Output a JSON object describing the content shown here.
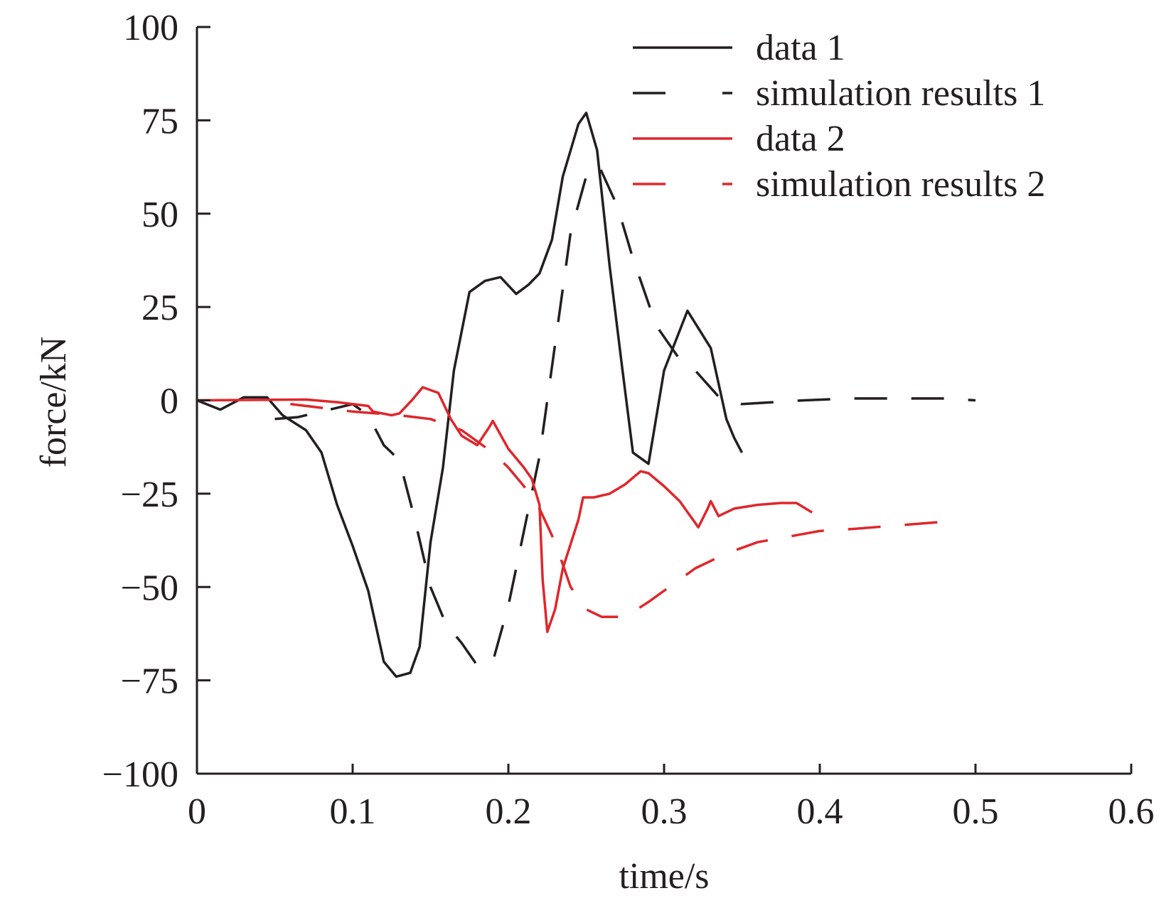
{
  "chart_data": {
    "type": "line",
    "xlabel": "time/s",
    "ylabel": "force/kN",
    "xlim": [
      0,
      0.6
    ],
    "ylim": [
      -100,
      100
    ],
    "x_ticks": [
      "0",
      "0.1",
      "0.2",
      "0.3",
      "0.4",
      "0.5",
      "0.6"
    ],
    "y_ticks": [
      "100",
      "75",
      "50",
      "25",
      "0",
      "−25",
      "−50",
      "−75",
      "−100"
    ],
    "x_tick_values": [
      0,
      0.1,
      0.2,
      0.3,
      0.4,
      0.5,
      0.6
    ],
    "y_tick_values": [
      100,
      75,
      50,
      25,
      0,
      -25,
      -50,
      -75,
      -100
    ],
    "legend_position": "top-right",
    "series": [
      {
        "name": "data 1",
        "color": "#231f20",
        "style": "solid",
        "points": [
          [
            0,
            0
          ],
          [
            0.015,
            -2.5
          ],
          [
            0.03,
            0.8
          ],
          [
            0.045,
            0.8
          ],
          [
            0.055,
            -4
          ],
          [
            0.07,
            -8
          ],
          [
            0.08,
            -14
          ],
          [
            0.09,
            -28
          ],
          [
            0.1,
            -39
          ],
          [
            0.11,
            -51
          ],
          [
            0.12,
            -70
          ],
          [
            0.128,
            -74
          ],
          [
            0.137,
            -73
          ],
          [
            0.143,
            -66
          ],
          [
            0.15,
            -38
          ],
          [
            0.158,
            -18
          ],
          [
            0.165,
            8
          ],
          [
            0.175,
            29
          ],
          [
            0.185,
            32
          ],
          [
            0.195,
            33
          ],
          [
            0.205,
            28.5
          ],
          [
            0.213,
            31
          ],
          [
            0.22,
            34
          ],
          [
            0.228,
            43
          ],
          [
            0.235,
            60
          ],
          [
            0.24,
            67
          ],
          [
            0.245,
            74
          ],
          [
            0.25,
            77
          ],
          [
            0.257,
            67
          ],
          [
            0.265,
            36
          ],
          [
            0.273,
            9
          ],
          [
            0.28,
            -14
          ],
          [
            0.29,
            -17
          ],
          [
            0.3,
            8
          ],
          [
            0.315,
            24
          ],
          [
            0.33,
            14
          ],
          [
            0.34,
            -5
          ],
          [
            0.345,
            -10
          ],
          [
            0.35,
            -14
          ]
        ]
      },
      {
        "name": "simulation results 1",
        "color": "#231f20",
        "style": "dashed",
        "points": [
          [
            0.05,
            -5
          ],
          [
            0.065,
            -4.5
          ],
          [
            0.08,
            -3
          ],
          [
            0.1,
            -1
          ],
          [
            0.11,
            -4
          ],
          [
            0.12,
            -12
          ],
          [
            0.13,
            -16
          ],
          [
            0.14,
            -32
          ],
          [
            0.15,
            -50
          ],
          [
            0.16,
            -60
          ],
          [
            0.17,
            -65
          ],
          [
            0.18,
            -71
          ],
          [
            0.19,
            -70
          ],
          [
            0.2,
            -55
          ],
          [
            0.21,
            -35
          ],
          [
            0.22,
            -15
          ],
          [
            0.23,
            15
          ],
          [
            0.24,
            45
          ],
          [
            0.25,
            60
          ],
          [
            0.258,
            63
          ],
          [
            0.27,
            52
          ],
          [
            0.28,
            38
          ],
          [
            0.295,
            20
          ],
          [
            0.31,
            11
          ],
          [
            0.32,
            8
          ],
          [
            0.335,
            1
          ],
          [
            0.35,
            -1
          ],
          [
            0.37,
            -0.5
          ],
          [
            0.39,
            0
          ],
          [
            0.42,
            0.5
          ],
          [
            0.45,
            0.5
          ],
          [
            0.48,
            0.5
          ],
          [
            0.5,
            0
          ]
        ]
      },
      {
        "name": "data 2",
        "color": "#e0262b",
        "style": "solid",
        "points": [
          [
            0,
            0
          ],
          [
            0.07,
            0.2
          ],
          [
            0.09,
            -0.5
          ],
          [
            0.11,
            -1.5
          ],
          [
            0.113,
            -3
          ],
          [
            0.125,
            -4
          ],
          [
            0.13,
            -3.5
          ],
          [
            0.138,
            0
          ],
          [
            0.145,
            3.5
          ],
          [
            0.155,
            2
          ],
          [
            0.163,
            -5
          ],
          [
            0.17,
            -9.5
          ],
          [
            0.18,
            -12
          ],
          [
            0.188,
            -7
          ],
          [
            0.19,
            -5.5
          ],
          [
            0.2,
            -13
          ],
          [
            0.21,
            -18
          ],
          [
            0.215,
            -21
          ],
          [
            0.22,
            -28
          ],
          [
            0.222,
            -48
          ],
          [
            0.225,
            -62
          ],
          [
            0.23,
            -56
          ],
          [
            0.235,
            -45
          ],
          [
            0.245,
            -32
          ],
          [
            0.248,
            -26
          ],
          [
            0.255,
            -26
          ],
          [
            0.265,
            -25
          ],
          [
            0.275,
            -22.5
          ],
          [
            0.285,
            -19
          ],
          [
            0.29,
            -19.5
          ],
          [
            0.3,
            -23
          ],
          [
            0.31,
            -27
          ],
          [
            0.322,
            -34
          ],
          [
            0.328,
            -29
          ],
          [
            0.33,
            -27
          ],
          [
            0.335,
            -31
          ],
          [
            0.345,
            -29
          ],
          [
            0.36,
            -28
          ],
          [
            0.375,
            -27.5
          ],
          [
            0.385,
            -27.5
          ],
          [
            0.395,
            -30
          ]
        ]
      },
      {
        "name": "simulation results 2",
        "color": "#e0262b",
        "style": "dashed",
        "points": [
          [
            0.06,
            -1
          ],
          [
            0.08,
            -2
          ],
          [
            0.1,
            -3
          ],
          [
            0.13,
            -4
          ],
          [
            0.15,
            -5
          ],
          [
            0.16,
            -6.5
          ],
          [
            0.17,
            -8
          ],
          [
            0.18,
            -11
          ],
          [
            0.19,
            -14
          ],
          [
            0.2,
            -18
          ],
          [
            0.21,
            -23
          ],
          [
            0.22,
            -29
          ],
          [
            0.23,
            -38
          ],
          [
            0.24,
            -50
          ],
          [
            0.25,
            -56
          ],
          [
            0.26,
            -58
          ],
          [
            0.275,
            -58
          ],
          [
            0.29,
            -54
          ],
          [
            0.3,
            -51
          ],
          [
            0.32,
            -45
          ],
          [
            0.34,
            -41
          ],
          [
            0.36,
            -38
          ],
          [
            0.38,
            -36.5
          ],
          [
            0.4,
            -35
          ],
          [
            0.42,
            -34.5
          ],
          [
            0.45,
            -33.5
          ],
          [
            0.48,
            -32.5
          ],
          [
            0.49,
            -32
          ]
        ]
      }
    ]
  }
}
